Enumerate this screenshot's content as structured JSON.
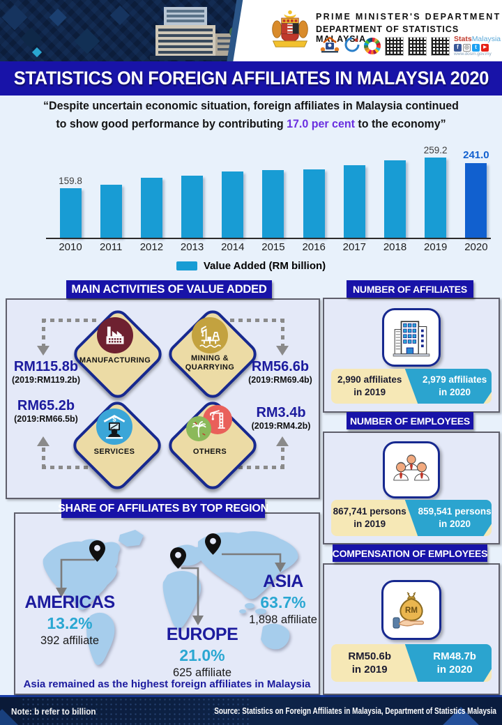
{
  "header": {
    "dept_line1": "PRIME MINISTER'S DEPARTMENT",
    "dept_line2": "DEPARTMENT OF STATISTICS MALAYSIA",
    "brand_stats": "Stats",
    "brand_malaysia": "Malaysia",
    "brand_url": "www.dosm.gov.my",
    "social_fb": "f",
    "social_ig": "◎",
    "social_tw": "t",
    "social_yt": "▶"
  },
  "title_banner": "STATISTICS ON FOREIGN AFFILIATES IN MALAYSIA 2020",
  "quote": {
    "line1": "“Despite uncertain economic situation, foreign affiliates in Malaysia continued",
    "line2_pre": "to show good performance by contributing ",
    "highlight": "17.0 per cent",
    "line2_post": "  to the economy”",
    "highlight_color": "#6a2fe0"
  },
  "chart_data": {
    "type": "bar",
    "categories": [
      "2010",
      "2011",
      "2012",
      "2013",
      "2014",
      "2015",
      "2016",
      "2017",
      "2018",
      "2019",
      "2020"
    ],
    "values": [
      159.8,
      172,
      193,
      200,
      215,
      218,
      221,
      234,
      250,
      259.2,
      241.0
    ],
    "point_labels": [
      {
        "index": 0,
        "label": "159.8",
        "emphasis": false
      },
      {
        "index": 9,
        "label": "259.2",
        "emphasis": false
      },
      {
        "index": 10,
        "label": "241.0",
        "emphasis": true
      }
    ],
    "legend": "Value Added  (RM billion)",
    "bar_color": "#189cd4",
    "highlight_index": 10,
    "highlight_color": "#1160cf",
    "xlabel": "",
    "ylabel": "",
    "ylim": [
      0,
      300
    ],
    "grid": false
  },
  "main_activities": {
    "title": "MAIN ACTIVITIES OF VALUE ADDED",
    "items": [
      {
        "name": "MANUFACTURING",
        "value": "RM115.8b",
        "prev": "(2019:RM119.2b)"
      },
      {
        "name": "MINING & QUARRYING",
        "value": "RM56.6b",
        "prev": "(2019:RM69.4b)"
      },
      {
        "name": "SERVICES",
        "value": "RM65.2b",
        "prev": "(2019:RM66.5b)"
      },
      {
        "name": "OTHERS",
        "value": "RM3.4b",
        "prev": "(2019:RM4.2b)"
      }
    ]
  },
  "affiliates_card": {
    "title": "NUMBER OF AFFILIATES",
    "left_line1": "2,990 affiliates",
    "left_line2": "in 2019",
    "right_line1": "2,979 affiliates",
    "right_line2": "in 2020"
  },
  "employees_card": {
    "title": "NUMBER OF EMPLOYEES",
    "left_line1": "867,741 persons",
    "left_line2": "in 2019",
    "right_line1": "859,541 persons",
    "right_line2": "in 2020"
  },
  "compensation_card": {
    "title": "COMPENSATION OF EMPLOYEES",
    "left_line1": "RM50.6b",
    "left_line2": "in 2019",
    "right_line1": "RM48.7b",
    "right_line2": "in 2020"
  },
  "regions": {
    "title": "SHARE OF AFFILIATES BY TOP REGION",
    "items": [
      {
        "name": "AMERICAS",
        "pct": "13.2%",
        "count": "392 affiliate"
      },
      {
        "name": "EUROPE",
        "pct": "21.0%",
        "count": "625 affiliate"
      },
      {
        "name": "ASIA",
        "pct": "63.7%",
        "count": "1,898 affiliate"
      }
    ],
    "note": "Asia remained as the highest foreign affiliates in Malaysia"
  },
  "footer": {
    "note": "Note: b refer to billion",
    "source": "Source: Statistics on Foreign Affiliates in Malaysia, Department of Statistics Malaysia"
  },
  "colors": {
    "banner_blue": "#1813a8",
    "bar_cyan": "#189cd4",
    "bar_highlight": "#1160cf",
    "cream": "#f6e8b6",
    "teal": "#2ba4cf",
    "navy_text": "#1c1b9e",
    "cyan_text": "#2aa7d2",
    "diamond_tan": "#ecdba5",
    "manufacturing_circle": "#6e2130",
    "mining_circle": "#c3a23f",
    "services_circle": "#3ba6d8",
    "others_green": "#8bb95a",
    "others_red": "#e9605a",
    "map_land": "#a6cdec"
  }
}
